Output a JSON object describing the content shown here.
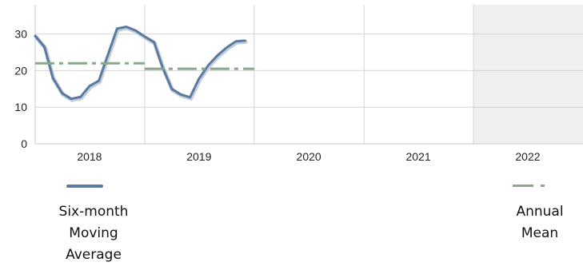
{
  "chart_data": {
    "type": "line",
    "x_domain": [
      "2018-01-01",
      "2023-01-01"
    ],
    "x_ticks": [
      {
        "label": "2018",
        "center": "2018-07-01"
      },
      {
        "label": "2019",
        "center": "2019-07-01"
      },
      {
        "label": "2020",
        "center": "2020-07-01"
      },
      {
        "label": "2021",
        "center": "2021-07-01"
      },
      {
        "label": "2022",
        "center": "2022-07-01"
      }
    ],
    "x_gridlines": [
      "2019-01-01",
      "2020-01-01",
      "2021-01-01",
      "2022-01-01"
    ],
    "shaded_region": [
      "2022-01-01",
      "2023-01-01"
    ],
    "ylim": [
      0,
      38
    ],
    "y_ticks": [
      0,
      10,
      20,
      30
    ],
    "grid": true,
    "series": [
      {
        "name": "Six-month Moving Average",
        "style": "solid",
        "color": "#5b7a9f",
        "points": [
          [
            "2018-01-01",
            29.5
          ],
          [
            "2018-02-01",
            26.5
          ],
          [
            "2018-03-01",
            18.0
          ],
          [
            "2018-04-01",
            13.8
          ],
          [
            "2018-05-01",
            12.3
          ],
          [
            "2018-06-01",
            12.8
          ],
          [
            "2018-07-01",
            15.8
          ],
          [
            "2018-08-01",
            17.2
          ],
          [
            "2018-09-01",
            24.5
          ],
          [
            "2018-10-01",
            31.5
          ],
          [
            "2018-11-01",
            32.0
          ],
          [
            "2018-12-01",
            31.0
          ],
          [
            "2019-01-01",
            29.3
          ],
          [
            "2019-02-01",
            27.8
          ],
          [
            "2019-03-01",
            21.0
          ],
          [
            "2019-04-01",
            15.0
          ],
          [
            "2019-05-01",
            13.5
          ],
          [
            "2019-06-01",
            12.7
          ],
          [
            "2019-07-01",
            17.8
          ],
          [
            "2019-08-01",
            21.5
          ],
          [
            "2019-09-01",
            24.2
          ],
          [
            "2019-10-01",
            26.3
          ],
          [
            "2019-11-01",
            28.0
          ],
          [
            "2019-12-01",
            28.2
          ]
        ]
      },
      {
        "name": "Annual Mean",
        "style": "dash-dot",
        "color": "#8aa78c",
        "segments": [
          {
            "from": "2018-01-01",
            "to": "2019-01-01",
            "value": 22.0
          },
          {
            "from": "2019-01-01",
            "to": "2020-01-01",
            "value": 20.5
          }
        ]
      }
    ],
    "legend": {
      "placement": "bottom",
      "items": [
        {
          "label": "Six-month\nMoving\nAverage",
          "style": "solid",
          "color": "#5b7a9f"
        },
        {
          "label": "Annual\nMean",
          "style": "dash-dot",
          "color": "#8aa78c"
        }
      ]
    }
  }
}
